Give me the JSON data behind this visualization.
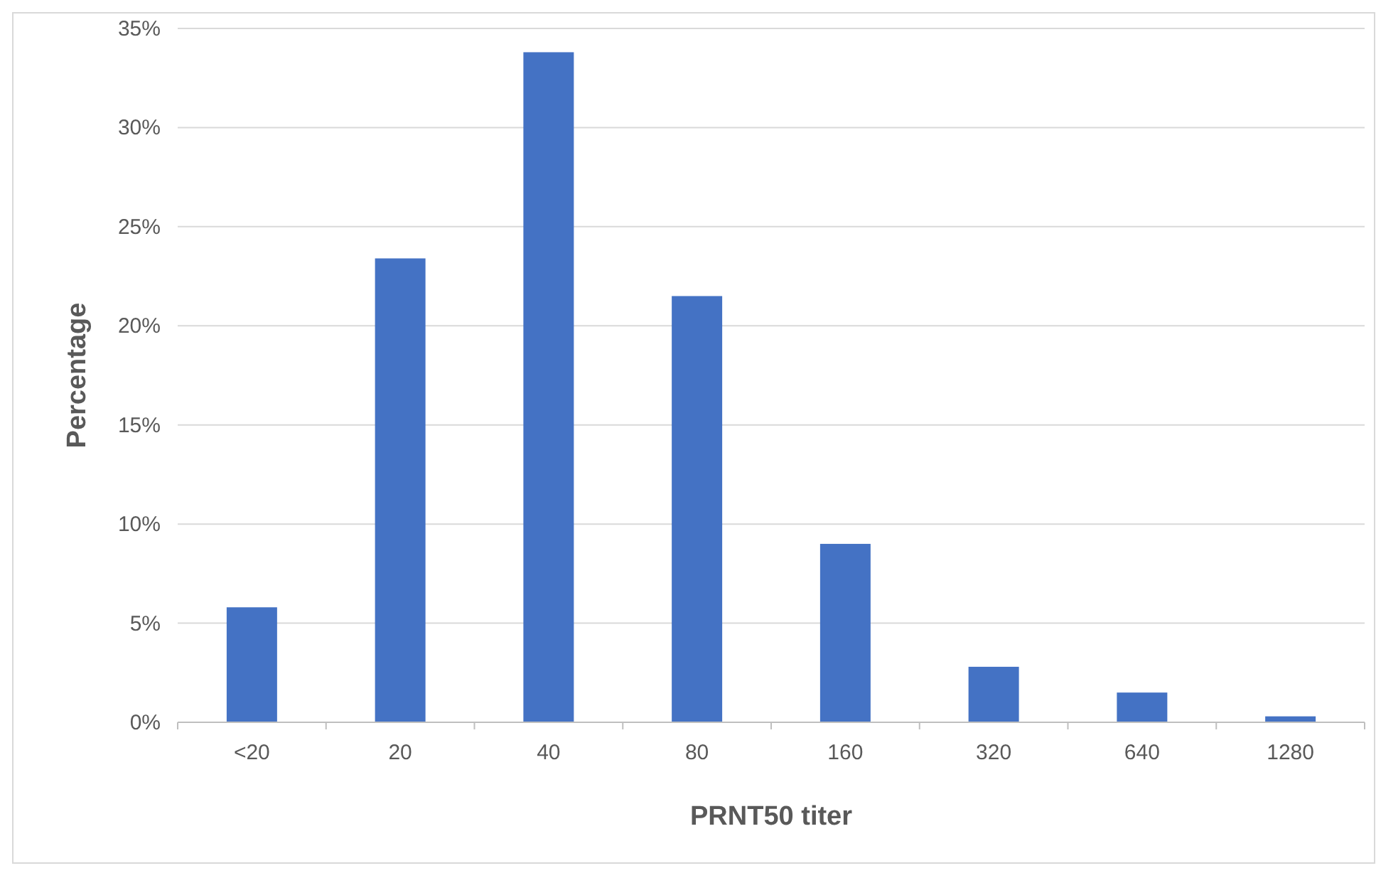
{
  "chart_data": {
    "type": "bar",
    "xlabel": "PRNT50 titer",
    "ylabel": "Percentage",
    "categories": [
      "<20",
      "20",
      "40",
      "80",
      "160",
      "320",
      "640",
      "1280"
    ],
    "values": [
      5.8,
      23.4,
      33.8,
      21.5,
      9.0,
      2.8,
      1.5,
      0.3
    ],
    "color": "#4472c4",
    "ylim": [
      0,
      35
    ],
    "yticks": [
      {
        "value": 0,
        "label": "0%"
      },
      {
        "value": 5,
        "label": "5%"
      },
      {
        "value": 10,
        "label": "10%"
      },
      {
        "value": 15,
        "label": "15%"
      },
      {
        "value": 20,
        "label": "20%"
      },
      {
        "value": 25,
        "label": "25%"
      },
      {
        "value": 30,
        "label": "30%"
      },
      {
        "value": 35,
        "label": "35%"
      }
    ],
    "grid": "y"
  }
}
